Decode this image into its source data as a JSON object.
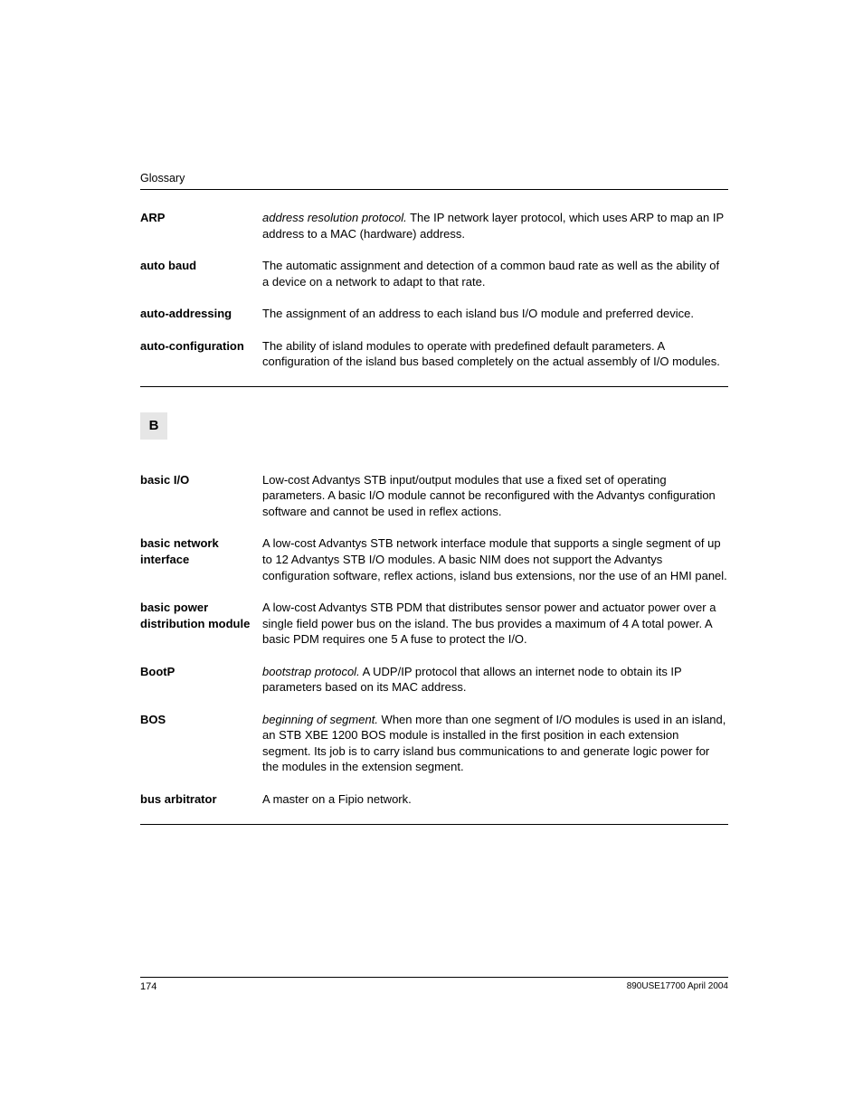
{
  "header": {
    "label": "Glossary"
  },
  "section_a": {
    "entries": [
      {
        "term": "ARP",
        "italic": "address resolution protocol.",
        "rest": " The IP network layer protocol, which uses ARP to map an IP address to a MAC (hardware) address."
      },
      {
        "term": "auto baud",
        "italic": "",
        "rest": "The automatic assignment and detection of a common baud rate as well as the ability of a device on a network to adapt to that rate."
      },
      {
        "term": "auto-addressing",
        "italic": "",
        "rest": "The assignment of an address to each island bus I/O module and preferred device."
      },
      {
        "term": "auto-configuration",
        "italic": "",
        "rest": "The ability of island modules to operate with predefined default parameters. A configuration of the island bus based completely on the actual assembly of I/O modules."
      }
    ]
  },
  "section_b": {
    "letter": "B",
    "entries": [
      {
        "term": "basic I/O",
        "italic": "",
        "rest": "Low-cost Advantys STB input/output modules that use a fixed set of operating parameters. A basic I/O module cannot be reconfigured with the Advantys configuration software and cannot be used in reflex actions."
      },
      {
        "term": "basic network interface",
        "italic": "",
        "rest": "A low-cost Advantys STB network interface module that supports a single segment of up to 12 Advantys STB I/O modules. A basic NIM does not support the Advantys configuration software, reflex actions, island bus extensions, nor the use of an HMI panel."
      },
      {
        "term": "basic power distribution module",
        "italic": "",
        "rest": "A low-cost Advantys STB PDM that distributes sensor power and actuator power over a single field power bus on the island. The bus provides a maximum of 4 A total power. A basic PDM requires one 5 A fuse to protect the I/O."
      },
      {
        "term": "BootP",
        "italic": "bootstrap protocol.",
        "rest": " A UDP/IP protocol that allows an internet node to obtain its IP parameters based on its MAC address."
      },
      {
        "term": "BOS",
        "italic": "beginning of segment.",
        "rest": " When more than one segment of I/O modules is used in an island, an STB XBE 1200 BOS module is installed in the first position in each extension segment. Its job is to carry island bus communications to and generate logic power for the modules in the extension segment."
      },
      {
        "term": "bus arbitrator",
        "italic": "",
        "rest": "A master on a Fipio network."
      }
    ]
  },
  "footer": {
    "page_number": "174",
    "doc_ref": "890USE17700 April 2004"
  }
}
